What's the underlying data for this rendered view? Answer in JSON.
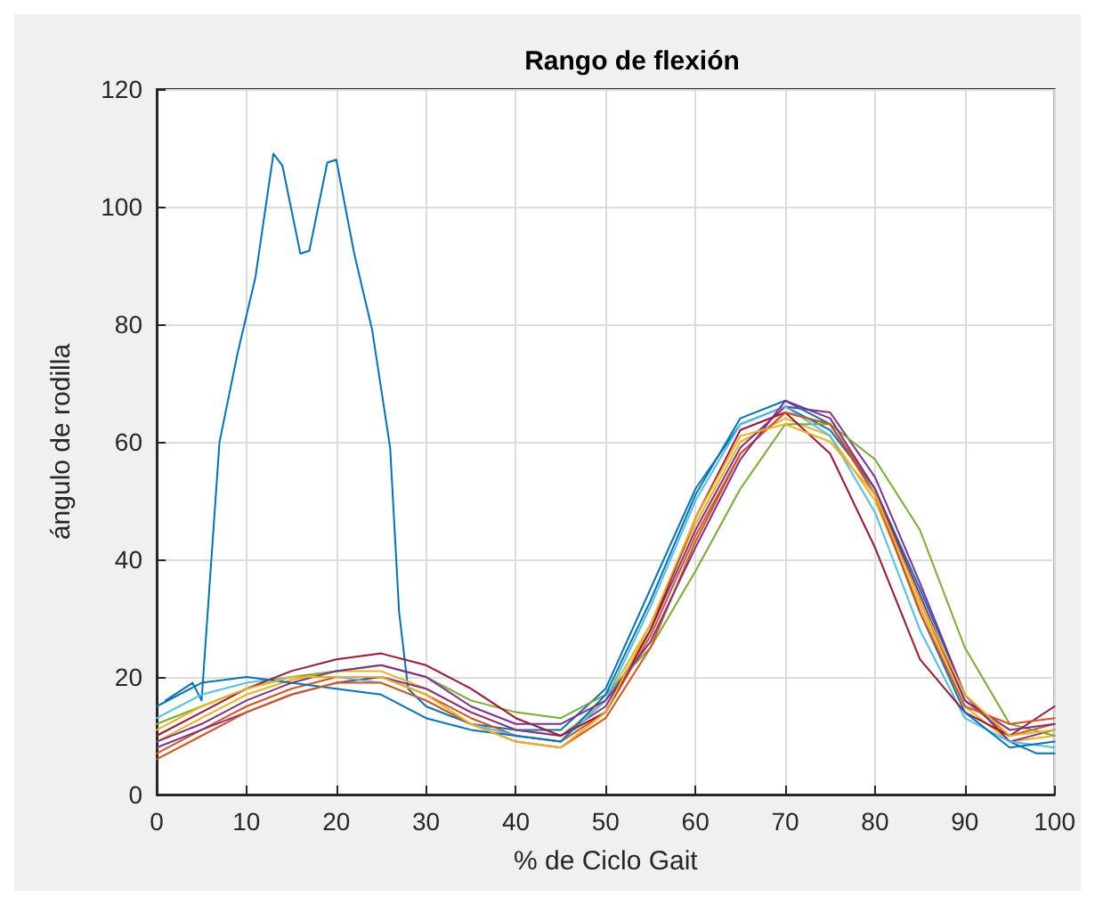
{
  "chart_data": {
    "type": "line",
    "title": "Rango de flexión",
    "xlabel": "% de Ciclo Gait",
    "ylabel": "ángulo de rodilla",
    "x": [
      0,
      5,
      10,
      15,
      20,
      25,
      30,
      35,
      40,
      45,
      50,
      55,
      60,
      65,
      70,
      75,
      80,
      85,
      90,
      95,
      100
    ],
    "series": [
      {
        "color": "#0072bd",
        "x": [
          1,
          4,
          5,
          7,
          9,
          11,
          13,
          14,
          16,
          17,
          19,
          20,
          22,
          24,
          26,
          27,
          28,
          30,
          35,
          40,
          45,
          50,
          55,
          60,
          65,
          70,
          75,
          80,
          85,
          90,
          95,
          98,
          100
        ],
        "values": [
          16,
          19,
          16,
          60,
          75,
          88,
          109,
          107,
          92,
          92.5,
          107.5,
          108,
          92,
          79,
          59,
          31,
          18,
          15,
          12,
          11,
          11,
          18,
          35,
          52,
          63,
          66,
          62,
          52,
          35,
          17,
          9,
          7,
          7
        ]
      },
      {
        "color": "#d95319",
        "values": [
          7,
          11,
          15,
          18,
          20,
          20,
          17,
          13,
          10,
          9,
          14,
          27,
          44,
          58,
          65,
          63,
          52,
          33,
          16,
          10,
          12
        ]
      },
      {
        "color": "#edb120",
        "values": [
          9,
          13,
          17,
          19.5,
          21,
          21,
          18,
          14,
          11,
          10,
          16,
          29,
          46,
          60,
          64,
          61,
          50,
          32,
          15,
          9,
          10
        ]
      },
      {
        "color": "#7e2f8e",
        "values": [
          8,
          11,
          14,
          17,
          19,
          20,
          18,
          14,
          11,
          10,
          15,
          28,
          45,
          59,
          66,
          65,
          54,
          36,
          17,
          9,
          11
        ]
      },
      {
        "color": "#77ac30",
        "values": [
          12,
          15,
          18,
          20,
          21,
          22,
          20,
          16,
          14,
          13,
          17,
          25,
          38,
          52,
          63,
          63,
          57,
          45,
          25,
          12,
          10
        ]
      },
      {
        "color": "#4dbeee",
        "values": [
          13,
          17,
          19,
          20,
          20,
          19,
          16,
          12,
          10,
          9,
          16,
          32,
          50,
          63,
          66,
          61,
          48,
          28,
          13,
          9,
          8
        ]
      },
      {
        "color": "#a2142f",
        "values": [
          10,
          14,
          18,
          21,
          23,
          24,
          22,
          18,
          13,
          10,
          14,
          28,
          47,
          62,
          65,
          58,
          42,
          23,
          14,
          10,
          15
        ]
      },
      {
        "color": "#0072bd",
        "values": [
          15,
          19,
          20,
          19,
          18,
          17,
          13,
          11,
          10,
          9,
          17,
          33,
          51,
          64,
          67,
          63,
          51,
          31,
          14,
          8,
          9
        ]
      },
      {
        "color": "#d95319",
        "values": [
          6,
          10,
          14,
          17,
          19,
          19,
          16,
          12,
          9,
          8,
          13,
          25,
          43,
          58,
          65,
          63,
          51,
          31,
          15,
          12,
          13
        ]
      },
      {
        "color": "#7e2f8e",
        "values": [
          9,
          12,
          16,
          19,
          21,
          22,
          20,
          15,
          12,
          12,
          16,
          26,
          42,
          57,
          67,
          64,
          52,
          34,
          16,
          11,
          12
        ]
      },
      {
        "color": "#edb120",
        "values": [
          11,
          15,
          18,
          20,
          20,
          20,
          17,
          12,
          9,
          8,
          14,
          29,
          47,
          61,
          63,
          60,
          51,
          33,
          17,
          10,
          11
        ]
      }
    ],
    "xlim": [
      0,
      100
    ],
    "xticks": [
      0,
      10,
      20,
      30,
      40,
      50,
      60,
      70,
      80,
      90,
      100
    ],
    "ylim": [
      0,
      120
    ],
    "yticks": [
      0,
      20,
      40,
      60,
      80,
      100,
      120
    ],
    "grid": true,
    "marker": "none",
    "line_style": "solid"
  }
}
